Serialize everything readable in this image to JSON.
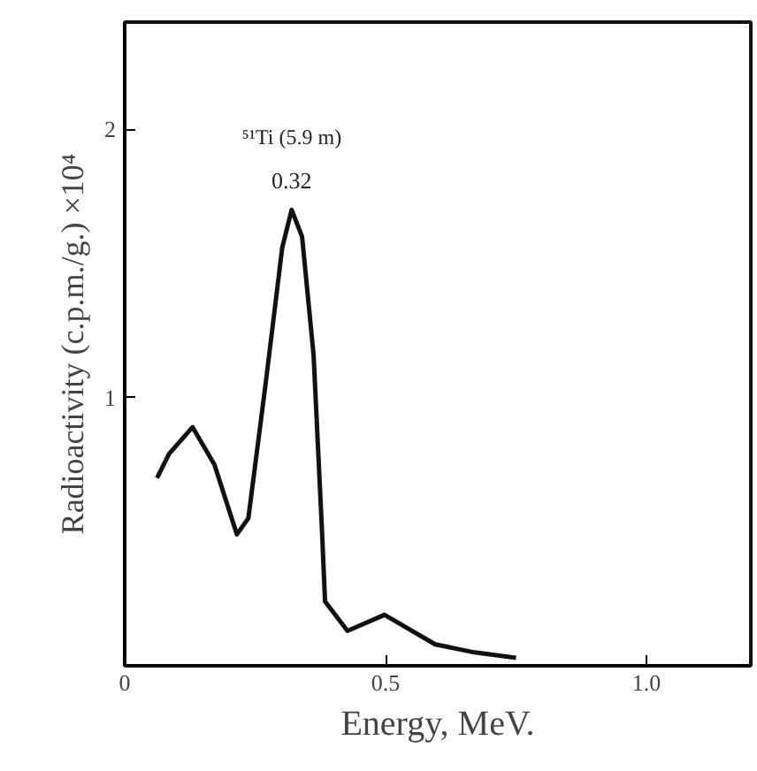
{
  "chart_data": {
    "type": "line",
    "xlabel": "Energy, MeV.",
    "ylabel": "Radioactivity (c.p.m./g.) ×10⁴",
    "x": [
      0.062,
      0.085,
      0.13,
      0.172,
      0.215,
      0.237,
      0.27,
      0.302,
      0.32,
      0.34,
      0.362,
      0.378,
      0.384,
      0.427,
      0.498,
      0.595,
      0.67,
      0.75
    ],
    "series": [
      {
        "color": "#111111",
        "values": [
          0.7,
          0.79,
          0.89,
          0.75,
          0.49,
          0.55,
          1.05,
          1.56,
          1.7,
          1.6,
          1.16,
          0.51,
          0.24,
          0.13,
          0.19,
          0.08,
          0.05,
          0.03
        ]
      }
    ],
    "xlim": [
      0,
      1.2
    ],
    "ylim": [
      0,
      2.4
    ],
    "xticks": [
      0,
      0.5,
      {
        "value": 1.0,
        "label": "1.0"
      }
    ],
    "yticks": [
      1,
      2
    ],
    "annotations": [
      {
        "text": "⁵¹Ti (5.9 m)",
        "x": 0.32,
        "y": 1.7
      },
      {
        "text": "0.32",
        "x": 0.32,
        "y": 1.7
      }
    ],
    "line_style": "solid"
  }
}
